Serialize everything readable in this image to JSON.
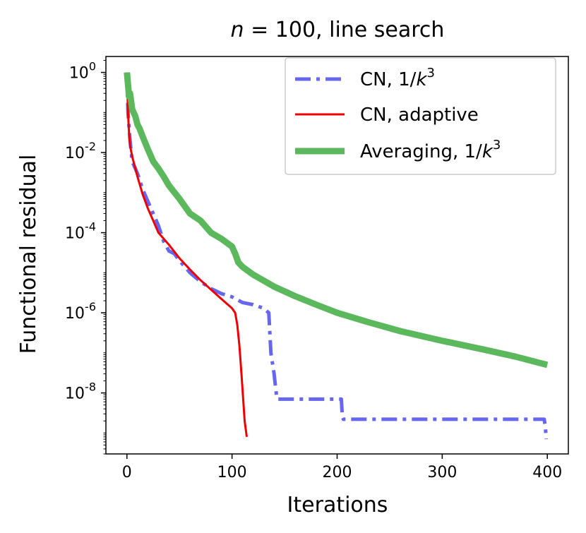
{
  "chart_data": {
    "type": "line",
    "title": "n = 100, line search",
    "xlabel": "Iterations",
    "ylabel": "Functional residual",
    "xlim": [
      -20,
      420
    ],
    "ylim": [
      3e-10,
      2.5
    ],
    "yscale": "log",
    "xticks": [
      0,
      100,
      200,
      300,
      400
    ],
    "xtick_labels": [
      "0",
      "100",
      "200",
      "300",
      "400"
    ],
    "yticks": [
      1,
      0.01,
      0.0001,
      1e-06,
      1e-08
    ],
    "ytick_labels": [
      {
        "base": "10",
        "exp": "0"
      },
      {
        "base": "10",
        "exp": "-2"
      },
      {
        "base": "10",
        "exp": "-4"
      },
      {
        "base": "10",
        "exp": "-6"
      },
      {
        "base": "10",
        "exp": "-8"
      }
    ],
    "grid": false,
    "legend": "top-right",
    "series": [
      {
        "name": "CN, 1/k³",
        "legend_main": "CN, 1/",
        "legend_var": "k",
        "legend_exp": "3",
        "color": "#6666ee",
        "style": "dashdot",
        "x": [
          0,
          1,
          3,
          5,
          8,
          10,
          15,
          20,
          25,
          30,
          35,
          40,
          45,
          50,
          60,
          70,
          80,
          90,
          100,
          110,
          120,
          130,
          135,
          137,
          140,
          142,
          143,
          150,
          180,
          204,
          205,
          206,
          300,
          397,
          398,
          399
        ],
        "y": [
          1.0,
          0.1,
          0.02,
          0.006,
          0.004,
          0.003,
          0.0012,
          0.0006,
          0.0003,
          0.00015,
          6e-05,
          3.5e-05,
          3e-05,
          2e-05,
          1e-05,
          6e-06,
          4e-06,
          3e-06,
          2.5e-06,
          1.8e-06,
          1.6e-06,
          1.3e-06,
          1e-06,
          1e-07,
          3e-08,
          1e-08,
          7e-09,
          7e-09,
          7e-09,
          7e-09,
          2.5e-09,
          2.2e-09,
          2.2e-09,
          2.2e-09,
          1.5e-09,
          7e-10
        ]
      },
      {
        "name": "CN, adaptive",
        "legend_main": "CN, adaptive",
        "legend_var": "",
        "legend_exp": "",
        "color": "#ee0000",
        "style": "solid",
        "x": [
          0,
          1,
          2,
          3,
          5,
          8,
          10,
          15,
          20,
          25,
          30,
          40,
          50,
          60,
          70,
          80,
          90,
          100,
          103,
          105,
          107,
          109,
          111,
          112,
          114
        ],
        "y": [
          1.0,
          0.1,
          0.03,
          0.015,
          0.008,
          0.004,
          0.0025,
          0.0009,
          0.0004,
          0.0002,
          0.0001,
          5e-05,
          2.3e-05,
          1.2e-05,
          6.5e-06,
          3.8e-06,
          2.2e-06,
          1.3e-06,
          1e-06,
          5e-07,
          1.5e-07,
          3e-08,
          5e-09,
          2e-09,
          8e-10
        ]
      },
      {
        "name": "Averaging, 1/k³",
        "legend_main": "Averaging, 1/",
        "legend_var": "k",
        "legend_exp": "3",
        "color": "#5cb85c",
        "style": "solid",
        "x": [
          0,
          2,
          3,
          5,
          8,
          10,
          12,
          15,
          20,
          25,
          30,
          35,
          40,
          50,
          60,
          70,
          80,
          90,
          100,
          103,
          106,
          110,
          120,
          140,
          160,
          180,
          200,
          230,
          260,
          300,
          340,
          370,
          400
        ],
        "y": [
          1.0,
          0.25,
          0.3,
          0.12,
          0.08,
          0.05,
          0.04,
          0.025,
          0.012,
          0.006,
          0.004,
          0.0025,
          0.0015,
          0.0007,
          0.0003,
          0.0002,
          0.0001,
          7e-05,
          4.5e-05,
          3e-05,
          1.8e-05,
          1.4e-05,
          9e-06,
          4.5e-06,
          2.6e-06,
          1.6e-06,
          1e-06,
          5.8e-07,
          3.5e-07,
          2e-07,
          1.2e-07,
          8e-08,
          5e-08
        ]
      }
    ]
  }
}
